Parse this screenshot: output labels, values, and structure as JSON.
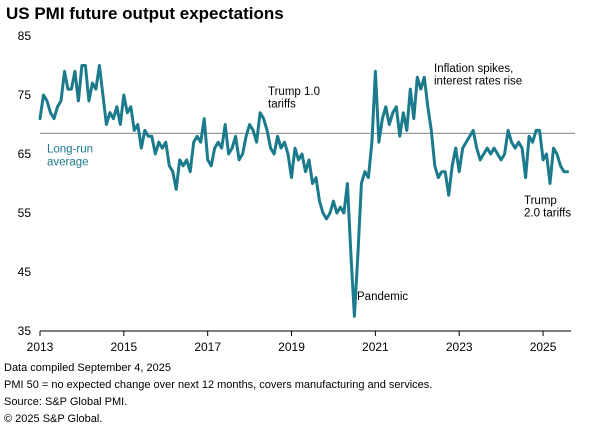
{
  "chart_data": {
    "type": "line",
    "title": "US PMI future output expectations",
    "xlabel": "",
    "ylabel": "",
    "ylim": [
      35,
      85
    ],
    "xlim": [
      "2013-01",
      "2025-09"
    ],
    "yticks": [
      35,
      45,
      55,
      65,
      75,
      85
    ],
    "xticks": [
      "2013",
      "2015",
      "2017",
      "2019",
      "2021",
      "2023",
      "2025"
    ],
    "grid": false,
    "line_color": "#1b7a8c",
    "reference_color": "#9a9a9a",
    "long_run_average": {
      "value": 68.5,
      "label_line1": "Long-run",
      "label_line2": "average"
    },
    "annotations": [
      {
        "lines": [
          "Trump 1.0",
          "tariffs"
        ],
        "x": "2018-04",
        "y": 71
      },
      {
        "lines": [
          "Pandemic"
        ],
        "x": "2020-05",
        "y": 37.5
      },
      {
        "lines": [
          "Inflation spikes,",
          "interest rates rise"
        ],
        "x": "2022-02",
        "y": 77
      },
      {
        "lines": [
          "Trump",
          "2.0 tariffs"
        ],
        "x": "2025-04",
        "y": 60
      }
    ],
    "series": [
      {
        "name": "US PMI future output expectations",
        "x": [
          "2013-01",
          "2013-02",
          "2013-03",
          "2013-04",
          "2013-05",
          "2013-06",
          "2013-07",
          "2013-08",
          "2013-09",
          "2013-10",
          "2013-11",
          "2013-12",
          "2014-01",
          "2014-02",
          "2014-03",
          "2014-04",
          "2014-05",
          "2014-06",
          "2014-07",
          "2014-08",
          "2014-09",
          "2014-10",
          "2014-11",
          "2014-12",
          "2015-01",
          "2015-02",
          "2015-03",
          "2015-04",
          "2015-05",
          "2015-06",
          "2015-07",
          "2015-08",
          "2015-09",
          "2015-10",
          "2015-11",
          "2015-12",
          "2016-01",
          "2016-02",
          "2016-03",
          "2016-04",
          "2016-05",
          "2016-06",
          "2016-07",
          "2016-08",
          "2016-09",
          "2016-10",
          "2016-11",
          "2016-12",
          "2017-01",
          "2017-02",
          "2017-03",
          "2017-04",
          "2017-05",
          "2017-06",
          "2017-07",
          "2017-08",
          "2017-09",
          "2017-10",
          "2017-11",
          "2017-12",
          "2018-01",
          "2018-02",
          "2018-03",
          "2018-04",
          "2018-05",
          "2018-06",
          "2018-07",
          "2018-08",
          "2018-09",
          "2018-10",
          "2018-11",
          "2018-12",
          "2019-01",
          "2019-02",
          "2019-03",
          "2019-04",
          "2019-05",
          "2019-06",
          "2019-07",
          "2019-08",
          "2019-09",
          "2019-10",
          "2019-11",
          "2019-12",
          "2020-01",
          "2020-02",
          "2020-03",
          "2020-04",
          "2020-05",
          "2020-06",
          "2020-07",
          "2020-08",
          "2020-09",
          "2020-10",
          "2020-11",
          "2020-12",
          "2021-01",
          "2021-02",
          "2021-03",
          "2021-04",
          "2021-05",
          "2021-06",
          "2021-07",
          "2021-08",
          "2021-09",
          "2021-10",
          "2021-11",
          "2021-12",
          "2022-01",
          "2022-02",
          "2022-03",
          "2022-04",
          "2022-05",
          "2022-06",
          "2022-07",
          "2022-08",
          "2022-09",
          "2022-10",
          "2022-11",
          "2022-12",
          "2023-01",
          "2023-02",
          "2023-03",
          "2023-04",
          "2023-05",
          "2023-06",
          "2023-07",
          "2023-08",
          "2023-09",
          "2023-10",
          "2023-11",
          "2023-12",
          "2024-01",
          "2024-02",
          "2024-03",
          "2024-04",
          "2024-05",
          "2024-06",
          "2024-07",
          "2024-08",
          "2024-09",
          "2024-10",
          "2024-11",
          "2024-12",
          "2025-01",
          "2025-02",
          "2025-03",
          "2025-04",
          "2025-05",
          "2025-06",
          "2025-07",
          "2025-08"
        ],
        "values": [
          71,
          75,
          74,
          72,
          71,
          73,
          74,
          79,
          76,
          76,
          79,
          74,
          80,
          80,
          74,
          77,
          76,
          80,
          75,
          70,
          72,
          71,
          73,
          70,
          75,
          72,
          73,
          69,
          70,
          66,
          69,
          68,
          68,
          65,
          67,
          66,
          67,
          63,
          62,
          59,
          64,
          63,
          64,
          62,
          67,
          68,
          67,
          71,
          64,
          63,
          66,
          67,
          66,
          70,
          65,
          66,
          68,
          64,
          65,
          68,
          70,
          69,
          67,
          72,
          71,
          69,
          66,
          65,
          68,
          66,
          67,
          65,
          61,
          66,
          64,
          65,
          62,
          64,
          60,
          61,
          57,
          55,
          54,
          55,
          57,
          55,
          56,
          55,
          60,
          48,
          37.5,
          48,
          60,
          62,
          61,
          67,
          79,
          67,
          71,
          73,
          70,
          72,
          73,
          68,
          72,
          69,
          76,
          71,
          78,
          76,
          78,
          73,
          69,
          63,
          61,
          62,
          62,
          58,
          63,
          66,
          62,
          66,
          67,
          68,
          69,
          66,
          64,
          65,
          66,
          65,
          66,
          65,
          64,
          65,
          69,
          67,
          66,
          67,
          66,
          61,
          68,
          67,
          69,
          69,
          64,
          65,
          60,
          66,
          65,
          63,
          62,
          62
        ]
      }
    ]
  },
  "footer": {
    "line1": "Data compiled September 4, 2025",
    "line2": "PMI 50 =  no expected change over next 12 months, covers manufacturing and services.",
    "line3": "Source: S&P Global PMI.",
    "line4": "© 2025 S&P Global."
  }
}
